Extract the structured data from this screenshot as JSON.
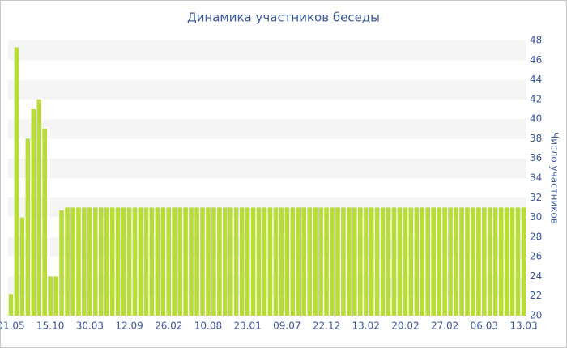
{
  "chart_data": {
    "type": "bar",
    "title": "Динамика участников беседы",
    "y_label": "Число участников",
    "categories": [
      "01.05",
      null,
      null,
      null,
      null,
      null,
      null,
      "15.10",
      null,
      null,
      null,
      null,
      null,
      null,
      "30.03",
      null,
      null,
      null,
      null,
      null,
      null,
      "12.09",
      null,
      null,
      null,
      null,
      null,
      null,
      "26.02",
      null,
      null,
      null,
      null,
      null,
      null,
      "10.08",
      null,
      null,
      null,
      null,
      null,
      null,
      "23.01",
      null,
      null,
      null,
      null,
      null,
      null,
      "09.07",
      null,
      null,
      null,
      null,
      null,
      null,
      "22.12",
      null,
      null,
      null,
      null,
      null,
      null,
      "13.02",
      null,
      null,
      null,
      null,
      null,
      null,
      "20.02",
      null,
      null,
      null,
      null,
      null,
      null,
      "27.02",
      null,
      null,
      null,
      null,
      null,
      null,
      "06.03",
      null,
      null,
      null,
      null,
      null,
      null,
      "13.03"
    ],
    "values": [
      22.2,
      47.3,
      30,
      38,
      41,
      42,
      39,
      24,
      24,
      30.7,
      31,
      31,
      31,
      31,
      31,
      31,
      31,
      31,
      31,
      31,
      31,
      31,
      31,
      31,
      31,
      31,
      31,
      31,
      31,
      31,
      31,
      31,
      31,
      31,
      31,
      31,
      31,
      31,
      31,
      31,
      31,
      31,
      31,
      31,
      31,
      31,
      31,
      31,
      31,
      31,
      31,
      31,
      31,
      31,
      31,
      31,
      31,
      31,
      31,
      31,
      31,
      31,
      31,
      31,
      31,
      31,
      31,
      31,
      31,
      31,
      31,
      31,
      31,
      31,
      31,
      31,
      31,
      31,
      31,
      31,
      31,
      31,
      31,
      31,
      31,
      31,
      31,
      31,
      31,
      31,
      31,
      31
    ],
    "color": "#b8dc3a",
    "ylim": [
      20,
      48
    ],
    "yticks": [
      20,
      22,
      24,
      26,
      28,
      30,
      32,
      34,
      36,
      38,
      40,
      42,
      44,
      46,
      48
    ],
    "grid": true
  }
}
